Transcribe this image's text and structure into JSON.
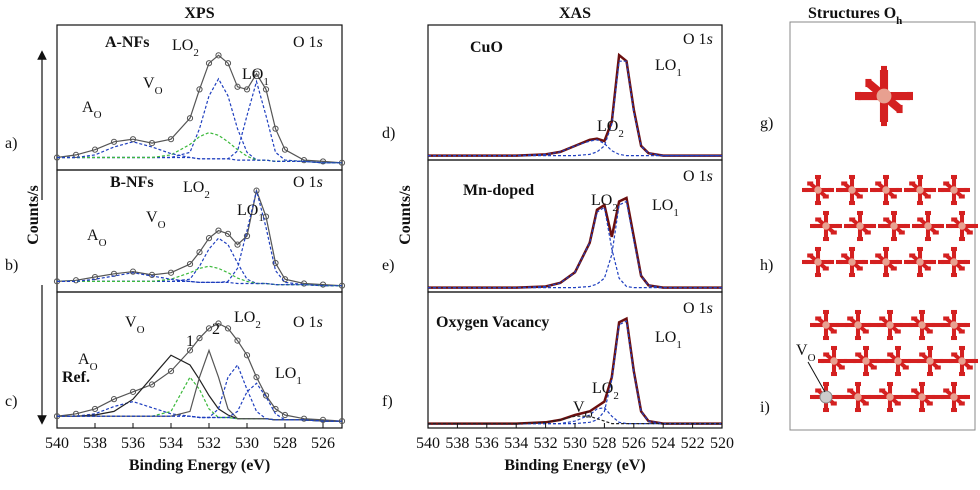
{
  "chart_data": [
    {
      "type": "line",
      "title": "XPS",
      "panel_label": "a)",
      "sample_label": "A-NFs",
      "annotations": [
        {
          "text": "A",
          "sub": "O"
        },
        {
          "text": "V",
          "sub": "O"
        },
        {
          "text": "LO",
          "sub": "2"
        },
        {
          "text": "LO",
          "sub": "1"
        },
        {
          "text": "O 1",
          "italic": "s"
        }
      ],
      "x": [
        540,
        539,
        538,
        537,
        536,
        535,
        534,
        533,
        532.5,
        532,
        531.5,
        531,
        530.5,
        530,
        529.5,
        529,
        528.5,
        528,
        527,
        526,
        525
      ],
      "xlim": [
        540,
        525
      ],
      "ylim": [
        0,
        100
      ],
      "series": [
        {
          "color": "#555555",
          "markers": true,
          "values": [
            8,
            10,
            14,
            20,
            22,
            19,
            22,
            38,
            60,
            80,
            86,
            80,
            62,
            60,
            72,
            60,
            30,
            14,
            6,
            5,
            4
          ]
        },
        {
          "color": "#1f3fbf",
          "dash": true,
          "values": [
            8,
            8,
            8,
            8,
            8,
            8,
            8,
            8,
            7,
            7,
            7,
            7,
            13,
            40,
            66,
            40,
            12,
            6,
            5,
            4,
            4
          ]
        },
        {
          "color": "#1f3fbf",
          "dash": true,
          "values": [
            8,
            8,
            8,
            8,
            8,
            8,
            8,
            12,
            30,
            55,
            68,
            55,
            30,
            12,
            6,
            6,
            5,
            5,
            5,
            4,
            4
          ]
        },
        {
          "color": "#3cb93c",
          "dash": true,
          "values": [
            8,
            8,
            8,
            8,
            8,
            8,
            10,
            18,
            24,
            27,
            25,
            20,
            14,
            9,
            6,
            6,
            5,
            5,
            5,
            4,
            4
          ]
        },
        {
          "color": "#1f3fbf",
          "dash": true,
          "values": [
            8,
            8,
            10,
            16,
            20,
            16,
            11,
            8,
            7,
            7,
            7,
            7,
            6,
            6,
            6,
            6,
            5,
            5,
            5,
            4,
            4
          ]
        }
      ]
    },
    {
      "type": "line",
      "ylabel": "Counts/s",
      "panel_label": "b)",
      "sample_label": "B-NFs",
      "annotations": [
        {
          "text": "A",
          "sub": "O"
        },
        {
          "text": "V",
          "sub": "O"
        },
        {
          "text": "LO",
          "sub": "2"
        },
        {
          "text": "LO",
          "sub": "1"
        },
        {
          "text": "O 1",
          "italic": "s"
        }
      ],
      "x": [
        540,
        539,
        538,
        537,
        536,
        535,
        534,
        533,
        532.5,
        532,
        531.5,
        531,
        530.5,
        530,
        529.5,
        529,
        528.5,
        528,
        527,
        526,
        525
      ],
      "xlim": [
        540,
        525
      ],
      "ylim": [
        0,
        100
      ],
      "series": [
        {
          "color": "#555555",
          "markers": true,
          "values": [
            8,
            9,
            12,
            15,
            17,
            14,
            16,
            24,
            35,
            48,
            55,
            52,
            42,
            50,
            92,
            68,
            25,
            10,
            6,
            5,
            4
          ]
        },
        {
          "color": "#1f3fbf",
          "dash": true,
          "values": [
            8,
            8,
            8,
            8,
            8,
            8,
            8,
            8,
            7,
            7,
            7,
            8,
            20,
            55,
            92,
            58,
            18,
            7,
            5,
            4,
            4
          ]
        },
        {
          "color": "#1f3fbf",
          "dash": true,
          "values": [
            8,
            8,
            8,
            8,
            8,
            8,
            8,
            10,
            22,
            38,
            48,
            42,
            25,
            10,
            6,
            6,
            5,
            5,
            5,
            4,
            4
          ]
        },
        {
          "color": "#3cb93c",
          "dash": true,
          "values": [
            8,
            8,
            8,
            8,
            8,
            8,
            10,
            16,
            20,
            22,
            20,
            16,
            11,
            8,
            6,
            6,
            5,
            5,
            5,
            4,
            4
          ]
        },
        {
          "color": "#1f3fbf",
          "dash": true,
          "values": [
            8,
            8,
            10,
            13,
            16,
            13,
            10,
            8,
            7,
            7,
            7,
            7,
            6,
            6,
            6,
            6,
            5,
            5,
            5,
            4,
            4
          ]
        }
      ]
    },
    {
      "type": "line",
      "xlabel": "Binding Energy (eV)",
      "panel_label": "c)",
      "sample_label": "Ref.",
      "annotations": [
        {
          "text": "A",
          "sub": "O"
        },
        {
          "text": "V",
          "sub": "O"
        },
        {
          "text": "LO",
          "sub": "2"
        },
        {
          "text": "LO",
          "sub": "1"
        },
        {
          "text": "O 1",
          "italic": "s"
        },
        {
          "text": "1",
          "color": "#d42020"
        },
        {
          "text": "2",
          "color": "#d42020"
        }
      ],
      "x": [
        540,
        539,
        538,
        537,
        536,
        535,
        534,
        533,
        532.5,
        532,
        531.5,
        531,
        530.5,
        530,
        529.5,
        529,
        528.5,
        528,
        527,
        526,
        525
      ],
      "xlim": [
        540,
        525
      ],
      "xticks": [
        540,
        538,
        536,
        534,
        532,
        530,
        528,
        526
      ],
      "ylim": [
        0,
        100
      ],
      "series": [
        {
          "color": "#555555",
          "markers": true,
          "values": [
            8,
            10,
            14,
            22,
            28,
            34,
            45,
            62,
            72,
            80,
            84,
            80,
            70,
            58,
            40,
            25,
            14,
            9,
            6,
            5,
            4
          ]
        },
        {
          "color": "#1f3fbf",
          "dash": true,
          "values": [
            8,
            8,
            10,
            16,
            20,
            15,
            10,
            8,
            7,
            7,
            7,
            7,
            6,
            6,
            6,
            6,
            5,
            5,
            5,
            4,
            4
          ]
        },
        {
          "color": "#222222",
          "values": [
            8,
            8,
            9,
            12,
            22,
            40,
            58,
            50,
            38,
            25,
            14,
            9,
            6,
            6,
            6,
            6,
            5,
            5,
            5,
            4,
            4
          ]
        },
        {
          "color": "#3cb93c",
          "dash": true,
          "values": [
            8,
            8,
            8,
            8,
            8,
            8,
            12,
            40,
            30,
            14,
            7,
            7,
            6,
            6,
            6,
            6,
            5,
            5,
            5,
            4,
            4
          ]
        },
        {
          "color": "#555555",
          "values": [
            8,
            8,
            8,
            8,
            8,
            8,
            8,
            12,
            40,
            62,
            40,
            14,
            6,
            6,
            6,
            6,
            5,
            5,
            5,
            4,
            4
          ]
        },
        {
          "color": "#1f3fbf",
          "dash": true,
          "values": [
            8,
            8,
            8,
            8,
            8,
            8,
            8,
            8,
            7,
            7,
            14,
            40,
            50,
            30,
            12,
            6,
            5,
            5,
            5,
            4,
            4
          ]
        },
        {
          "color": "#1f3fbf",
          "dash": true,
          "values": [
            8,
            8,
            8,
            8,
            8,
            8,
            8,
            8,
            7,
            7,
            7,
            7,
            12,
            28,
            35,
            24,
            10,
            5,
            5,
            4,
            4
          ]
        }
      ]
    },
    {
      "type": "line",
      "title": "XAS",
      "panel_label": "d)",
      "sample_label": "CuO",
      "annotations": [
        {
          "text": "LO",
          "sub": "1"
        },
        {
          "text": "LO",
          "sub": "2"
        },
        {
          "text": "O 1",
          "italic": "s"
        }
      ],
      "x": [
        540,
        538,
        536,
        534,
        532,
        531,
        530,
        529,
        528.5,
        528,
        527.5,
        527,
        526.5,
        526,
        525.5,
        525,
        524,
        522,
        520
      ],
      "xlim": [
        540,
        520
      ],
      "ylim": [
        0,
        100
      ],
      "series": [
        {
          "color": "#6b0f0f",
          "width": 2.5,
          "values": [
            2,
            2,
            2,
            2,
            3,
            5,
            10,
            15,
            16,
            14,
            30,
            85,
            80,
            40,
            10,
            4,
            2,
            2,
            2
          ]
        },
        {
          "color": "#1f3fbf",
          "dash": true,
          "values": [
            2,
            2,
            2,
            2,
            2,
            2,
            2,
            3,
            5,
            10,
            28,
            80,
            80,
            38,
            10,
            4,
            2,
            2,
            2
          ]
        },
        {
          "color": "#1f3fbf",
          "dash": true,
          "values": [
            2,
            2,
            2,
            2,
            3,
            5,
            10,
            14,
            15,
            12,
            6,
            3,
            2,
            2,
            2,
            2,
            2,
            2,
            2
          ]
        }
      ]
    },
    {
      "type": "line",
      "ylabel": "Counts/s",
      "panel_label": "e)",
      "sample_label": "Mn-doped",
      "annotations": [
        {
          "text": "LO",
          "sub": "2"
        },
        {
          "text": "LO",
          "sub": "1"
        },
        {
          "text": "O 1",
          "italic": "s"
        }
      ],
      "x": [
        540,
        538,
        536,
        534,
        532,
        531,
        530,
        529,
        528.5,
        528,
        527.5,
        527,
        526.5,
        526,
        525.5,
        525,
        524,
        522,
        520
      ],
      "xlim": [
        540,
        520
      ],
      "ylim": [
        0,
        100
      ],
      "series": [
        {
          "color": "#6b0f0f",
          "width": 2.5,
          "values": [
            2,
            2,
            2,
            2,
            3,
            6,
            15,
            40,
            68,
            72,
            45,
            75,
            78,
            45,
            12,
            4,
            2,
            2,
            2
          ]
        },
        {
          "color": "#1f3fbf",
          "dash": true,
          "values": [
            2,
            2,
            2,
            2,
            3,
            6,
            15,
            40,
            66,
            70,
            35,
            10,
            3,
            2,
            2,
            2,
            2,
            2,
            2
          ]
        },
        {
          "color": "#1f3fbf",
          "dash": true,
          "values": [
            2,
            2,
            2,
            2,
            2,
            2,
            2,
            3,
            5,
            10,
            30,
            72,
            75,
            42,
            12,
            4,
            2,
            2,
            2
          ]
        }
      ]
    },
    {
      "type": "line",
      "xlabel": "Binding Energy (eV)",
      "panel_label": "f)",
      "sample_label": "Oxygen Vacancy",
      "annotations": [
        {
          "text": "LO",
          "sub": "1"
        },
        {
          "text": "LO",
          "sub": "2"
        },
        {
          "text": "V",
          "sub": "O"
        },
        {
          "text": "O 1",
          "italic": "s"
        }
      ],
      "x": [
        540,
        538,
        536,
        534,
        532,
        531,
        530,
        529,
        528.5,
        528,
        527.5,
        527,
        526.5,
        526,
        525.5,
        525,
        524,
        522,
        520
      ],
      "xlim": [
        540,
        520
      ],
      "xticks": [
        540,
        538,
        536,
        534,
        532,
        530,
        528,
        526,
        524,
        522,
        520
      ],
      "ylim": [
        0,
        100
      ],
      "series": [
        {
          "color": "#6b0f0f",
          "width": 2.5,
          "values": [
            2,
            2,
            2,
            2,
            3,
            5,
            9,
            12,
            16,
            20,
            40,
            85,
            88,
            45,
            12,
            4,
            2,
            2,
            2
          ]
        },
        {
          "color": "#1f3fbf",
          "dash": true,
          "values": [
            2,
            2,
            2,
            2,
            2,
            2,
            2,
            3,
            5,
            12,
            38,
            83,
            86,
            44,
            12,
            4,
            2,
            2,
            2
          ]
        },
        {
          "color": "#1f3fbf",
          "dash": true,
          "values": [
            2,
            2,
            2,
            2,
            2,
            2,
            4,
            9,
            14,
            15,
            8,
            3,
            2,
            2,
            2,
            2,
            2,
            2,
            2
          ]
        },
        {
          "color": "#222222",
          "dash": true,
          "values": [
            2,
            2,
            2,
            2,
            3,
            5,
            8,
            8,
            6,
            4,
            2,
            2,
            2,
            2,
            2,
            2,
            2,
            2,
            2
          ]
        }
      ]
    }
  ],
  "structures": {
    "title": {
      "text": "Structures O",
      "sub": "h"
    },
    "panels": [
      "g)",
      "h)",
      "i)"
    ],
    "vacancy_label": {
      "text": "V",
      "sub": "O"
    }
  }
}
